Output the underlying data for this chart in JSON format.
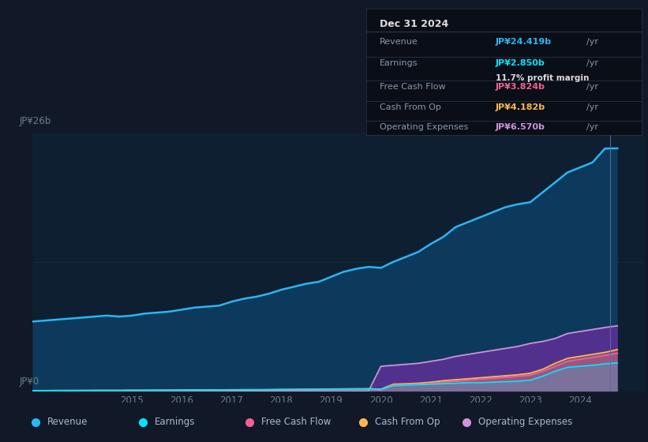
{
  "bg_color": "#111827",
  "chart_bg": "#0d1f30",
  "ylabel_top": "JP¥26b",
  "ylabel_bottom": "JP¥0",
  "years": [
    2013.0,
    2013.25,
    2013.5,
    2013.75,
    2014.0,
    2014.25,
    2014.5,
    2014.75,
    2015.0,
    2015.25,
    2015.5,
    2015.75,
    2016.0,
    2016.25,
    2016.5,
    2016.75,
    2017.0,
    2017.25,
    2017.5,
    2017.75,
    2018.0,
    2018.25,
    2018.5,
    2018.75,
    2019.0,
    2019.25,
    2019.5,
    2019.75,
    2020.0,
    2020.25,
    2020.5,
    2020.75,
    2021.0,
    2021.25,
    2021.5,
    2021.75,
    2022.0,
    2022.25,
    2022.5,
    2022.75,
    2023.0,
    2023.25,
    2023.5,
    2023.75,
    2024.0,
    2024.25,
    2024.5,
    2024.75
  ],
  "revenue": [
    7.0,
    7.1,
    7.2,
    7.3,
    7.4,
    7.5,
    7.6,
    7.5,
    7.6,
    7.8,
    7.9,
    8.0,
    8.2,
    8.4,
    8.5,
    8.6,
    9.0,
    9.3,
    9.5,
    9.8,
    10.2,
    10.5,
    10.8,
    11.0,
    11.5,
    12.0,
    12.3,
    12.5,
    12.4,
    13.0,
    13.5,
    14.0,
    14.8,
    15.5,
    16.5,
    17.0,
    17.5,
    18.0,
    18.5,
    18.8,
    19.0,
    20.0,
    21.0,
    22.0,
    22.5,
    23.0,
    24.4,
    24.419
  ],
  "earnings": [
    0.05,
    0.05,
    0.06,
    0.06,
    0.07,
    0.07,
    0.07,
    0.07,
    0.08,
    0.08,
    0.09,
    0.09,
    0.1,
    0.11,
    0.11,
    0.12,
    0.12,
    0.13,
    0.13,
    0.14,
    0.15,
    0.15,
    0.16,
    0.17,
    0.18,
    0.19,
    0.2,
    0.21,
    0.2,
    0.55,
    0.6,
    0.65,
    0.7,
    0.75,
    0.8,
    0.85,
    0.85,
    0.9,
    0.95,
    1.0,
    1.1,
    1.5,
    2.0,
    2.4,
    2.5,
    2.6,
    2.75,
    2.85
  ],
  "free_cash_flow": [
    0.04,
    0.04,
    0.05,
    0.05,
    0.05,
    0.06,
    0.06,
    0.06,
    0.07,
    0.07,
    0.07,
    0.08,
    0.08,
    0.09,
    0.1,
    0.1,
    0.11,
    0.12,
    0.12,
    0.13,
    0.14,
    0.15,
    0.15,
    0.16,
    0.18,
    0.19,
    0.2,
    0.2,
    0.1,
    0.6,
    0.65,
    0.7,
    0.75,
    0.9,
    1.0,
    1.1,
    1.2,
    1.3,
    1.4,
    1.5,
    1.6,
    2.0,
    2.5,
    3.0,
    3.2,
    3.4,
    3.6,
    3.824
  ],
  "cash_from_op": [
    0.06,
    0.06,
    0.07,
    0.07,
    0.07,
    0.08,
    0.08,
    0.08,
    0.09,
    0.09,
    0.1,
    0.1,
    0.11,
    0.12,
    0.13,
    0.13,
    0.14,
    0.15,
    0.15,
    0.16,
    0.17,
    0.18,
    0.19,
    0.2,
    0.22,
    0.23,
    0.24,
    0.25,
    0.2,
    0.7,
    0.75,
    0.8,
    0.9,
    1.05,
    1.15,
    1.25,
    1.35,
    1.45,
    1.55,
    1.65,
    1.8,
    2.2,
    2.8,
    3.3,
    3.5,
    3.7,
    3.9,
    4.182
  ],
  "operating_expenses": [
    0.0,
    0.0,
    0.0,
    0.0,
    0.0,
    0.0,
    0.0,
    0.0,
    0.0,
    0.0,
    0.0,
    0.0,
    0.0,
    0.0,
    0.0,
    0.0,
    0.0,
    0.0,
    0.0,
    0.0,
    0.0,
    0.0,
    0.0,
    0.0,
    0.0,
    0.0,
    0.0,
    0.0,
    2.5,
    2.6,
    2.7,
    2.8,
    3.0,
    3.2,
    3.5,
    3.7,
    3.9,
    4.1,
    4.3,
    4.5,
    4.8,
    5.0,
    5.3,
    5.8,
    6.0,
    6.2,
    6.4,
    6.57
  ],
  "revenue_color": "#29b6f6",
  "earnings_color": "#00e5ff",
  "free_cash_flow_color": "#f06292",
  "cash_from_op_color": "#ffb74d",
  "operating_expenses_color": "#ce93d8",
  "highlight_x": 2024.6,
  "tooltip": {
    "date": "Dec 31 2024",
    "revenue_label": "Revenue",
    "revenue_value": "JP¥24.419b",
    "earnings_label": "Earnings",
    "earnings_value": "JP¥2.850b",
    "profit_margin": "11.7%",
    "fcf_label": "Free Cash Flow",
    "fcf_value": "JP¥3.824b",
    "cfop_label": "Cash From Op",
    "cfop_value": "JP¥4.182b",
    "opex_label": "Operating Expenses",
    "opex_value": "JP¥6.570b"
  },
  "legend_items": [
    {
      "label": "Revenue",
      "color": "#29b6f6"
    },
    {
      "label": "Earnings",
      "color": "#00e5ff"
    },
    {
      "label": "Free Cash Flow",
      "color": "#f06292"
    },
    {
      "label": "Cash From Op",
      "color": "#ffb74d"
    },
    {
      "label": "Operating Expenses",
      "color": "#ce93d8"
    }
  ],
  "xtick_labels": [
    "2015",
    "2016",
    "2017",
    "2018",
    "2019",
    "2020",
    "2021",
    "2022",
    "2023",
    "2024"
  ],
  "xtick_values": [
    2015,
    2016,
    2017,
    2018,
    2019,
    2020,
    2021,
    2022,
    2023,
    2024
  ],
  "ylim": [
    0,
    26
  ],
  "xlim": [
    2013.0,
    2025.3
  ]
}
